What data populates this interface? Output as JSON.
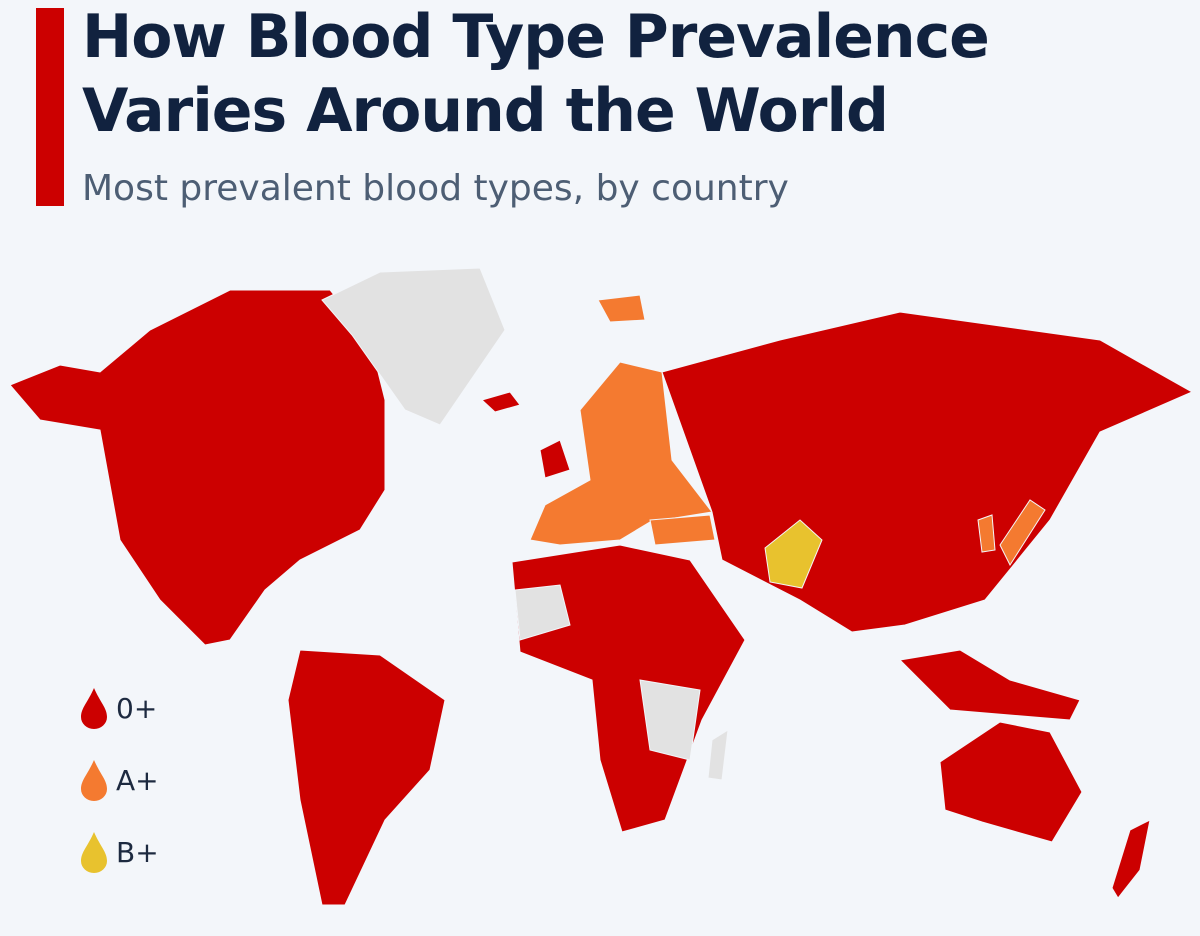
{
  "header": {
    "title_line1": "How Blood Type Prevalence",
    "title_line2": "Varies Around the World",
    "subtitle": "Most prevalent blood types, by country"
  },
  "colors": {
    "accent": "#cc0000",
    "o_pos": "#cc0000",
    "a_pos": "#f47a30",
    "b_pos": "#e8c22e",
    "no_data": "#e2e2e2"
  },
  "legend": [
    {
      "label": "0+",
      "color": "#cc0000"
    },
    {
      "label": "A+",
      "color": "#f47a30"
    },
    {
      "label": "B+",
      "color": "#e8c22e"
    }
  ]
}
